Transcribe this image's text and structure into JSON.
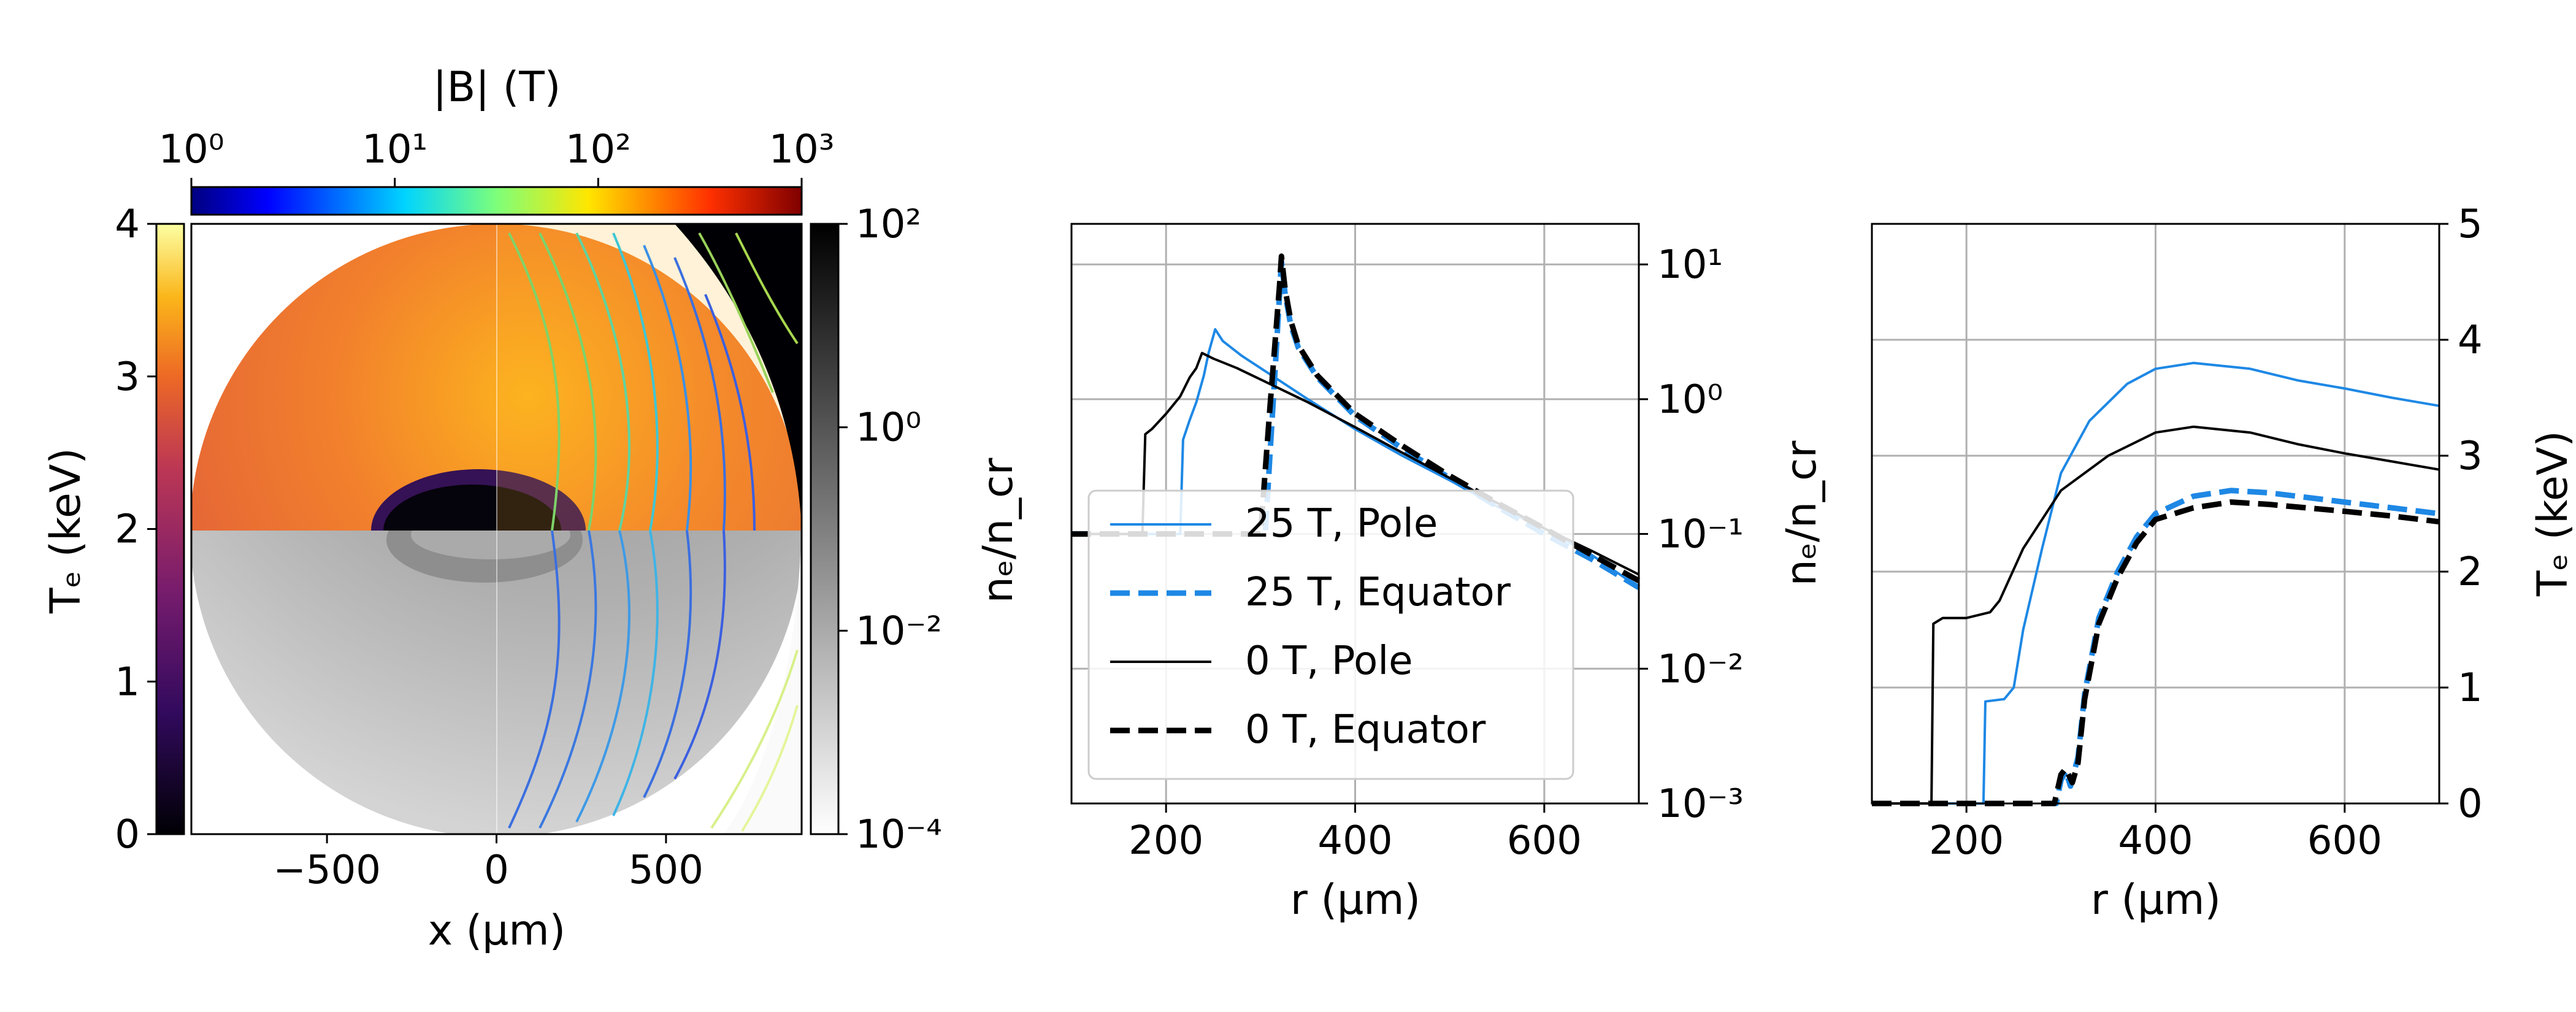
{
  "panelA": {
    "xlabel": "x (μm)",
    "xticks": [
      "−500",
      "0",
      "500"
    ],
    "colorbarB": {
      "label": "|B| (T)",
      "ticks": [
        "10⁰",
        "10¹",
        "10²",
        "10³"
      ]
    },
    "colorbarTe": {
      "label": "Tₑ (keV)",
      "ticks": [
        "0",
        "1",
        "2",
        "3",
        "4"
      ]
    },
    "colorbarNe": {
      "label": "nₑ/n_cr",
      "ticks": [
        "10⁻⁴",
        "10⁻²",
        "10⁰",
        "10²"
      ]
    }
  },
  "colors": {
    "blue": "#1e88e5",
    "black": "#000000"
  },
  "chart_data": [
    {
      "type": "line",
      "xlabel": "r (μm)",
      "ylabel": "nₑ/n_cr",
      "xlim": [
        100,
        700
      ],
      "ylim": [
        0.001,
        20
      ],
      "yscale": "log",
      "xticks": [
        "200",
        "400",
        "600"
      ],
      "yticks": [
        "10⁻³",
        "10⁻²",
        "10⁻¹",
        "10⁰",
        "10¹"
      ],
      "grid": true,
      "legend_position": "lower-left",
      "series": [
        {
          "name": "25 T, Pole",
          "color": "#1e88e5",
          "dash": "solid",
          "width": 4,
          "x": [
            100,
            215,
            218,
            225,
            232,
            240,
            245,
            252,
            260,
            280,
            300,
            350,
            400,
            450,
            500,
            550,
            600,
            650,
            700
          ],
          "y": [
            0.1,
            0.1,
            0.5,
            0.7,
            0.95,
            1.5,
            2.2,
            3.3,
            2.7,
            2.1,
            1.7,
            1.0,
            0.6,
            0.38,
            0.25,
            0.16,
            0.11,
            0.07,
            0.04
          ]
        },
        {
          "name": "25 T, Equator",
          "color": "#1e88e5",
          "dash": "dash",
          "width": 9,
          "x": [
            100,
            305,
            310,
            315,
            320,
            322,
            326,
            332,
            340,
            360,
            400,
            450,
            500,
            550,
            600,
            650,
            700
          ],
          "y": [
            0.1,
            0.1,
            0.4,
            1.5,
            6,
            10.5,
            6,
            3.5,
            2.4,
            1.45,
            0.75,
            0.43,
            0.26,
            0.16,
            0.1,
            0.065,
            0.04
          ]
        },
        {
          "name": "0 T, Pole",
          "color": "#000000",
          "dash": "solid",
          "width": 4,
          "x": [
            100,
            175,
            178,
            185,
            200,
            215,
            225,
            232,
            238,
            250,
            275,
            300,
            350,
            400,
            450,
            500,
            550,
            600,
            650,
            700
          ],
          "y": [
            0.1,
            0.1,
            0.55,
            0.6,
            0.78,
            1.05,
            1.45,
            1.7,
            2.2,
            2.0,
            1.7,
            1.4,
            0.95,
            0.62,
            0.4,
            0.26,
            0.17,
            0.11,
            0.075,
            0.05
          ]
        },
        {
          "name": "0 T, Equator",
          "color": "#000000",
          "dash": "dash",
          "width": 9,
          "x": [
            100,
            300,
            305,
            310,
            315,
            320,
            322,
            326,
            332,
            340,
            360,
            400,
            450,
            500,
            550,
            600,
            650,
            700
          ],
          "y": [
            0.1,
            0.1,
            0.3,
            0.9,
            2.5,
            7,
            11.5,
            6.5,
            3.8,
            2.5,
            1.5,
            0.78,
            0.45,
            0.27,
            0.17,
            0.11,
            0.07,
            0.045
          ]
        }
      ]
    },
    {
      "type": "line",
      "xlabel": "r (μm)",
      "ylabel": "Tₑ (keV)",
      "xlim": [
        100,
        700
      ],
      "ylim": [
        0,
        5
      ],
      "xticks": [
        "200",
        "400",
        "600"
      ],
      "yticks": [
        "0",
        "1",
        "2",
        "3",
        "4",
        "5"
      ],
      "grid": true,
      "series": [
        {
          "name": "25 T, Pole",
          "color": "#1e88e5",
          "dash": "solid",
          "width": 4,
          "x": [
            100,
            218,
            220,
            240,
            250,
            260,
            280,
            300,
            330,
            370,
            400,
            440,
            500,
            550,
            600,
            650,
            700
          ],
          "y": [
            0,
            0,
            0.88,
            0.9,
            1.0,
            1.5,
            2.2,
            2.85,
            3.3,
            3.62,
            3.75,
            3.8,
            3.75,
            3.65,
            3.58,
            3.5,
            3.43
          ]
        },
        {
          "name": "25 T, Equator",
          "color": "#1e88e5",
          "dash": "dash",
          "width": 9,
          "x": [
            100,
            295,
            300,
            305,
            310,
            318,
            325,
            340,
            360,
            380,
            400,
            440,
            480,
            520,
            600,
            650,
            700
          ],
          "y": [
            0,
            0,
            0.2,
            0.28,
            0.15,
            0.4,
            0.95,
            1.6,
            2.0,
            2.3,
            2.5,
            2.65,
            2.7,
            2.68,
            2.6,
            2.55,
            2.5
          ]
        },
        {
          "name": "0 T, Pole",
          "color": "#000000",
          "dash": "solid",
          "width": 4,
          "x": [
            100,
            163,
            165,
            175,
            200,
            225,
            235,
            260,
            300,
            350,
            400,
            440,
            500,
            550,
            600,
            650,
            700
          ],
          "y": [
            0,
            0,
            1.55,
            1.6,
            1.6,
            1.65,
            1.75,
            2.2,
            2.7,
            3.0,
            3.2,
            3.25,
            3.2,
            3.1,
            3.02,
            2.95,
            2.88
          ]
        },
        {
          "name": "0 T, Equator",
          "color": "#000000",
          "dash": "dash",
          "width": 9,
          "x": [
            100,
            293,
            300,
            305,
            312,
            318,
            325,
            340,
            360,
            380,
            400,
            440,
            480,
            520,
            600,
            650,
            700
          ],
          "y": [
            0,
            0,
            0.25,
            0.3,
            0.18,
            0.35,
            0.9,
            1.55,
            1.95,
            2.25,
            2.45,
            2.55,
            2.6,
            2.58,
            2.52,
            2.48,
            2.43
          ]
        }
      ]
    }
  ]
}
